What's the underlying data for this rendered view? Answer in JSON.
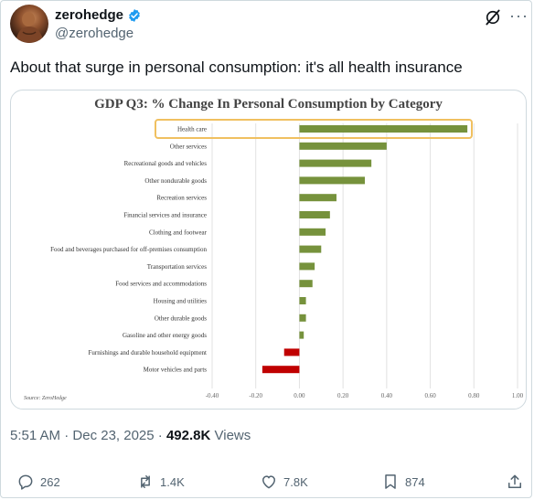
{
  "post": {
    "display_name": "zerohedge",
    "handle": "@zerohedge",
    "text": "About that surge in personal consumption: it's all health insurance",
    "time": "5:51 AM",
    "date": "Dec 23, 2025",
    "views_count": "492.8K",
    "views_label": "Views",
    "icons": {
      "verified": "verified-badge-icon",
      "grok": "grok-icon",
      "more": "more-icon",
      "reply": "reply-icon",
      "repost": "repost-icon",
      "like": "like-icon",
      "bookmark": "bookmark-icon",
      "share": "share-icon"
    }
  },
  "actions": {
    "replies": "262",
    "reposts": "1.4K",
    "likes": "7.8K",
    "bookmarks": "874"
  },
  "colors": {
    "positive_bar": "#76923c",
    "negative_bar": "#c00000",
    "highlight_box": "#f0c060",
    "verified": "#1d9bf0"
  },
  "chart_data": {
    "type": "bar",
    "orientation": "horizontal",
    "title": "GDP Q3: % Change In Personal Consumption by Category",
    "source": "Source: ZeroHedge",
    "highlighted_category": "Health care",
    "xlim": [
      -0.4,
      1.0
    ],
    "xticks": [
      "-0.40",
      "-0.20",
      "0.00",
      "0.20",
      "0.40",
      "0.60",
      "0.80",
      "1.00"
    ],
    "grid": true,
    "categories": [
      "Health care",
      "Other services",
      "Recreational goods and vehicles",
      "Other nondurable goods",
      "Recreation services",
      "Financial services and insurance",
      "Clothing and footwear",
      "Food and beverages purchased for off-premises consumption",
      "Transportation services",
      "Food services and accommodations",
      "Housing and utilities",
      "Other durable goods",
      "Gasoline and other energy goods",
      "Furnishings and durable household equipment",
      "Motor vehicles and parts"
    ],
    "values": [
      0.77,
      0.4,
      0.33,
      0.3,
      0.17,
      0.14,
      0.12,
      0.1,
      0.07,
      0.06,
      0.03,
      0.03,
      0.02,
      -0.07,
      -0.17
    ]
  }
}
